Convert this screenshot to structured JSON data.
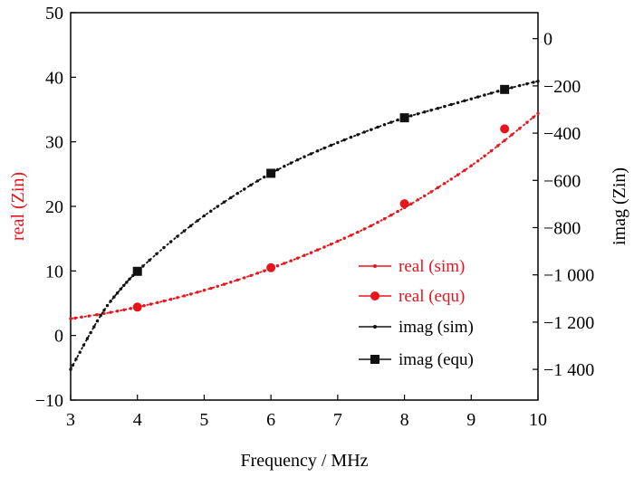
{
  "chart_data": {
    "type": "line",
    "xlabel": "Frequency / MHz",
    "ylabel_left": "real (Zin)",
    "ylabel_right": "imag (Zin)",
    "xlim": [
      3,
      10
    ],
    "ylim_left": [
      -10,
      50
    ],
    "ylim_right": [
      -1530,
      110
    ],
    "x_ticks": [
      3,
      4,
      5,
      6,
      7,
      8,
      9,
      10
    ],
    "x_tick_labels": [
      "3",
      "4",
      "5",
      "6",
      "7",
      "8",
      "9",
      "10"
    ],
    "y_left_ticks": [
      -10,
      0,
      10,
      20,
      30,
      40,
      50
    ],
    "y_left_tick_labels": [
      "−10",
      "0",
      "10",
      "20",
      "30",
      "40",
      "50"
    ],
    "y_right_ticks": [
      0,
      -200,
      -400,
      -600,
      -800,
      -1000,
      -1200,
      -1400
    ],
    "y_right_tick_labels": [
      "0",
      "−200",
      "−400",
      "−600",
      "−800",
      "−1 000",
      "−1 200",
      "−1 400"
    ],
    "grid": false,
    "legend_position": "lower-right",
    "series": [
      {
        "name": "real (sim)",
        "axis": "left",
        "color": "#e8141c",
        "style": "line-small-dots",
        "x": [
          3.0,
          3.5,
          4.0,
          4.5,
          5.0,
          5.5,
          6.0,
          6.5,
          7.0,
          7.5,
          8.0,
          8.5,
          9.0,
          9.5,
          10.0
        ],
        "values": [
          2.6,
          3.4,
          4.4,
          5.6,
          7.0,
          8.6,
          10.4,
          12.4,
          14.6,
          17.0,
          19.8,
          22.9,
          26.3,
          30.2,
          34.4
        ]
      },
      {
        "name": "real (equ)",
        "axis": "left",
        "color": "#e8141c",
        "style": "markers-circle",
        "x": [
          4.0,
          6.0,
          8.0,
          9.5
        ],
        "values": [
          4.4,
          10.5,
          20.4,
          32.0
        ]
      },
      {
        "name": "imag (sim)",
        "axis": "right",
        "color": "#111111",
        "style": "line-small-dots",
        "x": [
          3.0,
          3.25,
          3.5,
          3.75,
          4.0,
          4.5,
          5.0,
          5.5,
          6.0,
          6.5,
          7.0,
          7.5,
          8.0,
          8.5,
          9.0,
          9.5,
          10.0
        ],
        "values": [
          -1400,
          -1270,
          -1150,
          -1060,
          -985,
          -860,
          -750,
          -655,
          -570,
          -500,
          -440,
          -385,
          -335,
          -295,
          -255,
          -215,
          -180
        ]
      },
      {
        "name": "imag (equ)",
        "axis": "right",
        "color": "#111111",
        "style": "markers-square",
        "x": [
          4.0,
          6.0,
          8.0,
          9.5
        ],
        "values": [
          -985,
          -570,
          -335,
          -215
        ]
      }
    ]
  }
}
